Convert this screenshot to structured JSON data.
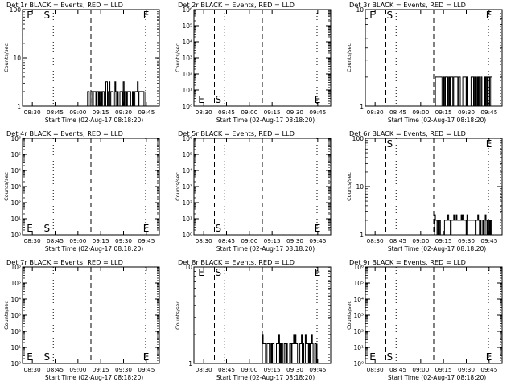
{
  "chart_data": [
    {
      "type": "line",
      "title": "Det 1r BLACK = Events, RED = LLD",
      "ylabel": "Counts/sec",
      "xlabel": "Start Time (02-Aug-17 08:18:20)",
      "y_scale": "log",
      "ylim": [
        1,
        100
      ],
      "y_ticks": [
        "1",
        "10",
        "100"
      ],
      "xlim_minutes": [
        0,
        40
      ],
      "x_ticks": [
        "08:30",
        "08:45",
        "09:00",
        "09:15",
        "09:30",
        "09:45"
      ],
      "x_tick_minutes": [
        12,
        27,
        42,
        57,
        72,
        87
      ],
      "dashed_lines_minutes": [
        6,
        20
      ],
      "dotted_lines_minutes": [
        9,
        36
      ],
      "markers": [
        {
          "label": "E",
          "minutes": 1,
          "pos": "top"
        },
        {
          "label": "S",
          "minutes": 6,
          "pos": "top"
        },
        {
          "label": "E",
          "minutes": 35,
          "pos": "top"
        }
      ],
      "series": [
        {
          "color": "#000000",
          "x_range_minutes": [
            19,
            36
          ],
          "low": 1,
          "high": 3.2,
          "base": 2
        }
      ]
    },
    {
      "type": "line",
      "title": "Det 2r BLACK = Events, RED = LLD",
      "ylabel": "Counts/sec",
      "xlabel": "Start Time (02-Aug-17 08:18:20)",
      "y_scale": "log",
      "ylim": [
        1,
        1000000
      ],
      "y_ticks": [
        "10⁰",
        "10¹",
        "10²",
        "10³",
        "10⁴",
        "10⁵",
        "10⁶"
      ],
      "xlim_minutes": [
        0,
        40
      ],
      "x_ticks": [
        "08:30",
        "08:45",
        "09:00",
        "09:15",
        "09:30",
        "09:45"
      ],
      "x_tick_minutes": [
        12,
        27,
        42,
        57,
        72,
        87
      ],
      "dashed_lines_minutes": [
        6,
        20
      ],
      "dotted_lines_minutes": [
        9,
        36
      ],
      "markers": [
        {
          "label": "E",
          "minutes": 1,
          "pos": "bottom"
        },
        {
          "label": "S",
          "minutes": 6,
          "pos": "bottom"
        },
        {
          "label": "E",
          "minutes": 35,
          "pos": "bottom"
        }
      ],
      "series": []
    },
    {
      "type": "line",
      "title": "Det 3r BLACK = Events, RED = LLD",
      "ylabel": "Counts/sec",
      "xlabel": "Start Time (02-Aug-17 08:18:20)",
      "y_scale": "log",
      "ylim": [
        1,
        10
      ],
      "y_ticks": [
        "1",
        "10"
      ],
      "xlim_minutes": [
        0,
        40
      ],
      "x_ticks": [
        "08:30",
        "08:45",
        "09:00",
        "09:15",
        "09:30",
        "09:45"
      ],
      "x_tick_minutes": [
        12,
        27,
        42,
        57,
        72,
        87
      ],
      "dashed_lines_minutes": [
        6,
        20
      ],
      "dotted_lines_minutes": [
        9,
        36
      ],
      "markers": [
        {
          "label": "E",
          "minutes": 1,
          "pos": "top"
        },
        {
          "label": "S",
          "minutes": 6,
          "pos": "top"
        },
        {
          "label": "E",
          "minutes": 35,
          "pos": "top"
        }
      ],
      "series": [
        {
          "color": "#000000",
          "x_range_minutes": [
            20,
            37
          ],
          "low": 1,
          "high": 2,
          "base": 2
        }
      ]
    },
    {
      "type": "line",
      "title": "Det 4r BLACK = Events, RED = LLD",
      "ylabel": "Counts/sec",
      "xlabel": "Start Time (02-Aug-17 08:18:20)",
      "y_scale": "log",
      "ylim": [
        1,
        1000000
      ],
      "y_ticks": [
        "10⁰",
        "10¹",
        "10²",
        "10³",
        "10⁴",
        "10⁵",
        "10⁶"
      ],
      "xlim_minutes": [
        0,
        40
      ],
      "x_ticks": [
        "08:30",
        "08:45",
        "09:00",
        "09:15",
        "09:30",
        "09:45"
      ],
      "x_tick_minutes": [
        12,
        27,
        42,
        57,
        72,
        87
      ],
      "dashed_lines_minutes": [
        6,
        20
      ],
      "dotted_lines_minutes": [
        9,
        36
      ],
      "markers": [
        {
          "label": "E",
          "minutes": 1,
          "pos": "bottom"
        },
        {
          "label": "S",
          "minutes": 6,
          "pos": "bottom"
        },
        {
          "label": "E",
          "minutes": 35,
          "pos": "bottom"
        }
      ],
      "series": []
    },
    {
      "type": "line",
      "title": "Det 5r BLACK = Events, RED = LLD",
      "ylabel": "Counts/sec",
      "xlabel": "Start Time (02-Aug-17 08:18:20)",
      "y_scale": "log",
      "ylim": [
        1,
        1000000
      ],
      "y_ticks": [
        "10⁰",
        "10¹",
        "10²",
        "10³",
        "10⁴",
        "10⁵",
        "10⁶"
      ],
      "xlim_minutes": [
        0,
        40
      ],
      "x_ticks": [
        "08:30",
        "08:45",
        "09:00",
        "09:15",
        "09:30",
        "09:45"
      ],
      "x_tick_minutes": [
        12,
        27,
        42,
        57,
        72,
        87
      ],
      "dashed_lines_minutes": [
        6,
        20
      ],
      "dotted_lines_minutes": [
        9,
        36
      ],
      "markers": [
        {
          "label": "S",
          "minutes": 6,
          "pos": "bottom"
        },
        {
          "label": "E",
          "minutes": 35,
          "pos": "bottom"
        }
      ],
      "series": []
    },
    {
      "type": "line",
      "title": "Det 6r BLACK = Events, RED = LLD",
      "ylabel": "Counts/sec",
      "xlabel": "Start Time (02-Aug-17 08:18:20)",
      "y_scale": "log",
      "ylim": [
        1,
        100
      ],
      "y_ticks": [
        "1",
        "10",
        "100"
      ],
      "xlim_minutes": [
        0,
        40
      ],
      "x_ticks": [
        "08:30",
        "08:45",
        "09:00",
        "09:15",
        "09:30",
        "09:45"
      ],
      "x_tick_minutes": [
        12,
        27,
        42,
        57,
        72,
        87
      ],
      "dashed_lines_minutes": [
        6,
        20
      ],
      "dotted_lines_minutes": [
        9,
        36
      ],
      "markers": [
        {
          "label": "S",
          "minutes": 6,
          "pos": "top"
        },
        {
          "label": "E",
          "minutes": 35,
          "pos": "top"
        }
      ],
      "series": [
        {
          "color": "#000000",
          "x_range_minutes": [
            20,
            37
          ],
          "low": 1,
          "high": 2.6,
          "base": 2
        }
      ]
    },
    {
      "type": "line",
      "title": "Det 7r BLACK = Events, RED = LLD",
      "ylabel": "Counts/sec",
      "xlabel": "Start Time (02-Aug-17 08:18:20)",
      "y_scale": "log",
      "ylim": [
        1,
        1000000
      ],
      "y_ticks": [
        "10⁰",
        "10¹",
        "10²",
        "10³",
        "10⁴",
        "10⁵",
        "10⁶"
      ],
      "xlim_minutes": [
        0,
        40
      ],
      "x_ticks": [
        "08:30",
        "08:45",
        "09:00",
        "09:15",
        "09:30",
        "09:45"
      ],
      "x_tick_minutes": [
        12,
        27,
        42,
        57,
        72,
        87
      ],
      "dashed_lines_minutes": [
        6,
        20
      ],
      "dotted_lines_minutes": [
        9,
        36
      ],
      "markers": [
        {
          "label": "E",
          "minutes": 1,
          "pos": "bottom"
        },
        {
          "label": "S",
          "minutes": 6,
          "pos": "bottom"
        },
        {
          "label": "E",
          "minutes": 35,
          "pos": "bottom"
        }
      ],
      "series": []
    },
    {
      "type": "line",
      "title": "Det 8r BLACK = Events, RED = LLD",
      "ylabel": "Counts/sec",
      "xlabel": "Start Time (02-Aug-17 08:18:20)",
      "y_scale": "log",
      "ylim": [
        1,
        10
      ],
      "y_ticks": [
        "1",
        "10"
      ],
      "xlim_minutes": [
        0,
        40
      ],
      "x_ticks": [
        "08:30",
        "08:45",
        "09:00",
        "09:15",
        "09:30",
        "09:45"
      ],
      "x_tick_minutes": [
        12,
        27,
        42,
        57,
        72,
        87
      ],
      "dashed_lines_minutes": [
        6,
        20
      ],
      "dotted_lines_minutes": [
        9,
        36
      ],
      "markers": [
        {
          "label": "E",
          "minutes": 1,
          "pos": "top"
        },
        {
          "label": "S",
          "minutes": 6,
          "pos": "top"
        },
        {
          "label": "E",
          "minutes": 35,
          "pos": "top"
        }
      ],
      "series": [
        {
          "color": "#000000",
          "x_range_minutes": [
            20,
            36
          ],
          "low": 1,
          "high": 2,
          "base": 1.6
        }
      ]
    },
    {
      "type": "line",
      "title": "Det 9r BLACK = Events, RED = LLD",
      "ylabel": "Counts/sec",
      "xlabel": "Start Time (02-Aug-17 08:18:20)",
      "y_scale": "log",
      "ylim": [
        1,
        1000000
      ],
      "y_ticks": [
        "10⁰",
        "10¹",
        "10²",
        "10³",
        "10⁴",
        "10⁵",
        "10⁶"
      ],
      "xlim_minutes": [
        0,
        40
      ],
      "x_ticks": [
        "08:30",
        "08:45",
        "09:00",
        "09:15",
        "09:30",
        "09:45"
      ],
      "x_tick_minutes": [
        12,
        27,
        42,
        57,
        72,
        87
      ],
      "dashed_lines_minutes": [
        6,
        20
      ],
      "dotted_lines_minutes": [
        9,
        36
      ],
      "markers": [
        {
          "label": "E",
          "minutes": 1,
          "pos": "bottom"
        },
        {
          "label": "S",
          "minutes": 6,
          "pos": "bottom"
        },
        {
          "label": "E",
          "minutes": 35,
          "pos": "bottom"
        }
      ],
      "series": []
    }
  ]
}
